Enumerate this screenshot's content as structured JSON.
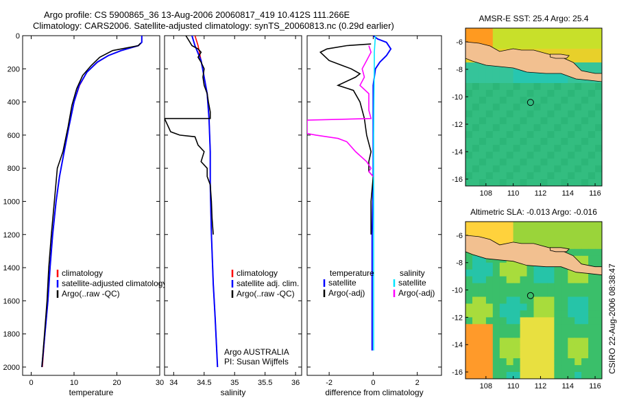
{
  "header": {
    "line1": "Argo profile: CS 5900865_36 13-Aug-2006 20060817_419 10.412S 111.266E",
    "line2": "Climatology: CARS2006. Satellite-adjusted climatology: synTS_20060813.nc (0.29d earlier)"
  },
  "footer_stamp": "CSIRO 22-Aug-2006 08:38:47",
  "colors": {
    "climatology": "#ff0000",
    "satellite": "#0000ff",
    "argo": "#000000",
    "salinity_satellite": "#00e5ff",
    "salinity_argo": "#ff00ff",
    "land": "#f2c090",
    "ocean": "#2fb870"
  },
  "chart_data": [
    {
      "type": "line",
      "id": "temperature",
      "xlabel": "temperature",
      "xlim": [
        -2,
        30
      ],
      "ylim": [
        2050,
        0
      ],
      "xticks": [
        0,
        10,
        20,
        30
      ],
      "yticks": [
        0,
        200,
        400,
        600,
        800,
        1000,
        1200,
        1400,
        1600,
        1800,
        2000
      ],
      "legend": {
        "position": "lower-right",
        "entries": [
          "climatology",
          "satellite-adjusted climatology",
          "Argo(..raw -QC)"
        ]
      },
      "series": [
        {
          "name": "climatology",
          "color": "#ff0000",
          "points": [
            [
              25.8,
              0
            ],
            [
              25.8,
              40
            ],
            [
              25,
              60
            ],
            [
              21,
              90
            ],
            [
              18,
              120
            ],
            [
              15.5,
              160
            ],
            [
              13,
              220
            ],
            [
              11.3,
              300
            ],
            [
              10,
              400
            ],
            [
              8.8,
              550
            ],
            [
              7.7,
              700
            ],
            [
              6.6,
              850
            ],
            [
              5.8,
              1000
            ],
            [
              5,
              1200
            ],
            [
              4.4,
              1400
            ],
            [
              3.9,
              1600
            ],
            [
              3.2,
              1800
            ],
            [
              2.6,
              2000
            ]
          ]
        },
        {
          "name": "satellite-adjusted climatology",
          "color": "#0000ff",
          "points": [
            [
              25.8,
              0
            ],
            [
              25.8,
              40
            ],
            [
              25,
              60
            ],
            [
              21,
              90
            ],
            [
              18,
              120
            ],
            [
              15.4,
              160
            ],
            [
              13,
              220
            ],
            [
              11.2,
              300
            ],
            [
              10,
              400
            ],
            [
              8.8,
              550
            ],
            [
              7.7,
              700
            ],
            [
              6.6,
              850
            ],
            [
              5.8,
              1000
            ],
            [
              5,
              1200
            ],
            [
              4.4,
              1400
            ],
            [
              3.9,
              1600
            ],
            [
              3.2,
              1800
            ],
            [
              2.5,
              2000
            ]
          ]
        },
        {
          "name": "Argo(..raw -QC)",
          "color": "#000000",
          "points": [
            [
              25.5,
              45
            ],
            [
              25,
              60
            ],
            [
              19,
              90
            ],
            [
              16,
              130
            ],
            [
              14,
              180
            ],
            [
              12,
              240
            ],
            [
              10.6,
              320
            ],
            [
              9.5,
              420
            ],
            [
              8.6,
              550
            ],
            [
              7.4,
              700
            ],
            [
              6.1,
              800
            ],
            [
              5.4,
              1000
            ],
            [
              4.7,
              1200
            ],
            [
              4.1,
              1400
            ],
            [
              3.7,
              1600
            ],
            [
              3.1,
              1800
            ],
            [
              2.5,
              2000
            ]
          ]
        }
      ]
    },
    {
      "type": "line",
      "id": "salinity",
      "xlabel": "salinity",
      "xlim": [
        33.85,
        36.1
      ],
      "ylim": [
        2050,
        0
      ],
      "xticks": [
        34,
        34.5,
        35,
        35.5,
        36
      ],
      "yticks": [
        0,
        200,
        400,
        600,
        800,
        1000,
        1200,
        1400,
        1600,
        1800,
        2000
      ],
      "legend": {
        "position": "lower-right",
        "entries": [
          "climatology",
          "satellite adj. clim.",
          "Argo(..raw -QC)"
        ]
      },
      "annotations": [
        "Argo AUSTRALIA",
        "PI: Susan Wijffels"
      ],
      "series": [
        {
          "name": "climatology",
          "color": "#ff0000",
          "points": [
            [
              34.35,
              0
            ],
            [
              34.4,
              60
            ],
            [
              34.45,
              150
            ],
            [
              34.5,
              250
            ],
            [
              34.55,
              350
            ],
            [
              34.58,
              500
            ],
            [
              34.6,
              700
            ],
            [
              34.6,
              900
            ],
            [
              34.62,
              1200
            ],
            [
              34.65,
              1500
            ],
            [
              34.68,
              1700
            ],
            [
              34.72,
              2000
            ]
          ]
        },
        {
          "name": "satellite adj. clim.",
          "color": "#0000ff",
          "points": [
            [
              34.3,
              0
            ],
            [
              34.35,
              60
            ],
            [
              34.45,
              150
            ],
            [
              34.5,
              250
            ],
            [
              34.55,
              350
            ],
            [
              34.58,
              500
            ],
            [
              34.6,
              700
            ],
            [
              34.6,
              900
            ],
            [
              34.62,
              1200
            ],
            [
              34.65,
              1500
            ],
            [
              34.68,
              1700
            ],
            [
              34.72,
              2000
            ]
          ]
        },
        {
          "name": "Argo(..raw -QC)",
          "color": "#000000",
          "points": [
            [
              34.2,
              0
            ],
            [
              34.25,
              30
            ],
            [
              34.3,
              60
            ],
            [
              34.4,
              80
            ],
            [
              34.45,
              100
            ],
            [
              34.4,
              130
            ],
            [
              34.45,
              160
            ],
            [
              34.5,
              200
            ],
            [
              34.48,
              250
            ],
            [
              34.5,
              300
            ],
            [
              34.55,
              350
            ],
            [
              34.57,
              400
            ],
            [
              34.6,
              460
            ],
            [
              34.6,
              500
            ],
            [
              33.85,
              500
            ],
            [
              33.95,
              580
            ],
            [
              34.1,
              600
            ],
            [
              34.35,
              610
            ],
            [
              34.4,
              660
            ],
            [
              34.5,
              700
            ],
            [
              34.45,
              760
            ],
            [
              34.55,
              800
            ],
            [
              34.55,
              850
            ],
            [
              34.6,
              900
            ],
            [
              34.62,
              1000
            ],
            [
              34.63,
              1100
            ],
            [
              34.65,
              1200
            ]
          ]
        }
      ]
    },
    {
      "type": "line",
      "id": "difference",
      "xlabel": "difference from climatology",
      "xlim": [
        -3,
        3.1
      ],
      "ylim": [
        2050,
        0
      ],
      "xticks": [
        -2,
        0,
        2
      ],
      "yticks": [
        0,
        200,
        400,
        600,
        800,
        1000,
        1200,
        1400,
        1600,
        1800,
        2000
      ],
      "legend": {
        "position": "lower-center",
        "entries": [
          {
            "group": "temperature",
            "satellite": "satellite",
            "argo": "Argo(-adj)"
          },
          {
            "group": "salinity",
            "satellite": "satellite",
            "argo": "Argo(-adj)"
          }
        ]
      },
      "series": [
        {
          "name": "temperature satellite",
          "color": "#0000ff",
          "points": [
            [
              0,
              0
            ],
            [
              0.2,
              20
            ],
            [
              0.6,
              40
            ],
            [
              0.8,
              80
            ],
            [
              0.6,
              120
            ],
            [
              0.3,
              160
            ],
            [
              0.1,
              200
            ],
            [
              0,
              300
            ],
            [
              0,
              600
            ],
            [
              0,
              900
            ],
            [
              -0.05,
              1200
            ],
            [
              -0.05,
              1500
            ],
            [
              -0.05,
              1900
            ]
          ]
        },
        {
          "name": "temperature Argo(-adj)",
          "color": "#000000",
          "points": [
            [
              -0.1,
              50
            ],
            [
              -1.2,
              60
            ],
            [
              -2.1,
              80
            ],
            [
              -2.4,
              100
            ],
            [
              -2.0,
              150
            ],
            [
              -1.4,
              180
            ],
            [
              -1.0,
              200
            ],
            [
              -0.6,
              230
            ],
            [
              -0.8,
              250
            ],
            [
              -1.6,
              300
            ],
            [
              -0.9,
              330
            ],
            [
              -0.6,
              400
            ],
            [
              -0.4,
              500
            ],
            [
              -0.3,
              600
            ],
            [
              -0.1,
              700
            ],
            [
              -0.2,
              760
            ],
            [
              -0.2,
              820
            ],
            [
              0,
              850
            ],
            [
              -0.1,
              1000
            ],
            [
              -0.1,
              1100
            ],
            [
              -0.1,
              1200
            ]
          ]
        },
        {
          "name": "salinity satellite",
          "color": "#00e5ff",
          "points": [
            [
              0.1,
              0
            ],
            [
              0.05,
              100
            ],
            [
              0.05,
              200
            ],
            [
              0.03,
              400
            ],
            [
              0.02,
              600
            ],
            [
              0.02,
              800
            ],
            [
              0.02,
              1000
            ],
            [
              0.02,
              1200
            ],
            [
              0.02,
              1500
            ],
            [
              0.02,
              1900
            ]
          ]
        },
        {
          "name": "salinity Argo(-adj)",
          "color": "#ff00ff",
          "points": [
            [
              -0.2,
              60
            ],
            [
              -0.1,
              100
            ],
            [
              -0.3,
              150
            ],
            [
              -0.5,
              200
            ],
            [
              -0.4,
              250
            ],
            [
              -0.6,
              300
            ],
            [
              -0.2,
              350
            ],
            [
              -0.2,
              400
            ],
            [
              -0.2,
              450
            ],
            [
              -0.1,
              500
            ],
            [
              -3,
              510
            ],
            [
              -3,
              590
            ],
            [
              -2.6,
              600
            ],
            [
              -1.6,
              620
            ],
            [
              -1.2,
              640
            ],
            [
              -0.8,
              700
            ],
            [
              -0.3,
              760
            ],
            [
              -0.1,
              800
            ],
            [
              -0.2,
              820
            ],
            [
              0,
              850
            ]
          ]
        }
      ]
    },
    {
      "type": "heatmap",
      "id": "sst-map",
      "title": "AMSR-E SST: 25.4  Argo: 25.4",
      "xlim": [
        106.5,
        116.5
      ],
      "ylim": [
        -16.5,
        -5
      ],
      "xticks": [
        108,
        110,
        112,
        114,
        116
      ],
      "yticks": [
        -6,
        -8,
        -10,
        -12,
        -14,
        -16
      ],
      "marker": {
        "lon": 111.266,
        "lat": -10.412
      }
    },
    {
      "type": "heatmap",
      "id": "sla-map",
      "title": "Altimetric SLA: -0.013  Argo: -0.016",
      "xlim": [
        106.5,
        116.5
      ],
      "ylim": [
        -16.5,
        -5
      ],
      "xticks": [
        108,
        110,
        112,
        114,
        116
      ],
      "yticks": [
        -6,
        -8,
        -10,
        -12,
        -14,
        -16
      ],
      "marker": {
        "lon": 111.266,
        "lat": -10.412
      }
    }
  ]
}
